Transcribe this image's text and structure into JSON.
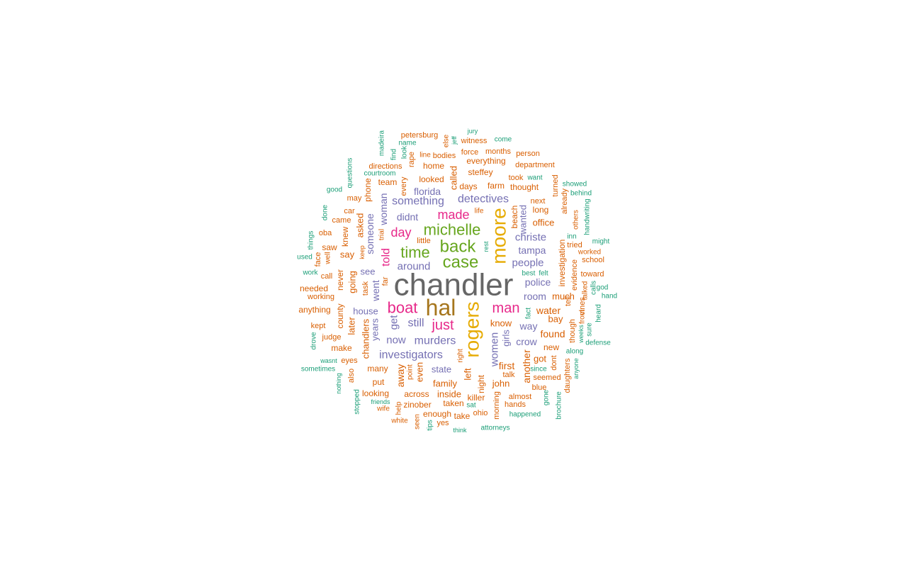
{
  "chart_data": {
    "type": "wordcloud",
    "palette": {
      "orange": "#d95f02",
      "teal": "#1b9e77",
      "purple": "#7570b3",
      "pink": "#e7298a",
      "green": "#66a61e",
      "gold": "#e6ab02",
      "brown": "#a6761d",
      "gray": "#666666"
    },
    "words": [
      {
        "text": "chandler",
        "color": "gray"
      },
      {
        "text": "hal",
        "color": "brown"
      },
      {
        "text": "rogers",
        "color": "gold"
      },
      {
        "text": "moore",
        "color": "gold"
      },
      {
        "text": "back",
        "color": "green"
      },
      {
        "text": "case",
        "color": "green"
      },
      {
        "text": "michelle",
        "color": "green"
      },
      {
        "text": "time",
        "color": "green"
      },
      {
        "text": "boat",
        "color": "pink"
      },
      {
        "text": "man",
        "color": "pink"
      },
      {
        "text": "just",
        "color": "pink"
      },
      {
        "text": "day",
        "color": "pink"
      },
      {
        "text": "made",
        "color": "pink"
      },
      {
        "text": "told",
        "color": "pink"
      },
      {
        "text": "murders",
        "color": "purple"
      },
      {
        "text": "investigators",
        "color": "purple"
      },
      {
        "text": "detectives",
        "color": "purple"
      },
      {
        "text": "something",
        "color": "purple"
      },
      {
        "text": "people",
        "color": "purple"
      },
      {
        "text": "christe",
        "color": "purple"
      },
      {
        "text": "tampa",
        "color": "purple"
      },
      {
        "text": "police",
        "color": "purple"
      },
      {
        "text": "women",
        "color": "purple"
      },
      {
        "text": "still",
        "color": "purple"
      },
      {
        "text": "now",
        "color": "purple"
      },
      {
        "text": "get",
        "color": "purple"
      },
      {
        "text": "around",
        "color": "purple"
      },
      {
        "text": "florida",
        "color": "purple"
      },
      {
        "text": "didnt",
        "color": "purple"
      },
      {
        "text": "someone",
        "color": "purple"
      },
      {
        "text": "woman",
        "color": "purple"
      },
      {
        "text": "went",
        "color": "purple"
      },
      {
        "text": "house",
        "color": "purple"
      },
      {
        "text": "years",
        "color": "purple"
      },
      {
        "text": "girls",
        "color": "purple"
      },
      {
        "text": "way",
        "color": "purple"
      },
      {
        "text": "room",
        "color": "purple"
      },
      {
        "text": "crow",
        "color": "purple"
      },
      {
        "text": "state",
        "color": "purple"
      },
      {
        "text": "see",
        "color": "purple"
      },
      {
        "text": "wanted",
        "color": "purple"
      },
      {
        "text": "office",
        "color": "orange"
      },
      {
        "text": "long",
        "color": "orange"
      },
      {
        "text": "next",
        "color": "orange"
      },
      {
        "text": "beach",
        "color": "orange"
      },
      {
        "text": "thought",
        "color": "orange"
      },
      {
        "text": "farm",
        "color": "orange"
      },
      {
        "text": "took",
        "color": "orange"
      },
      {
        "text": "days",
        "color": "orange"
      },
      {
        "text": "steffey",
        "color": "orange"
      },
      {
        "text": "everything",
        "color": "orange"
      },
      {
        "text": "department",
        "color": "orange"
      },
      {
        "text": "force",
        "color": "orange"
      },
      {
        "text": "months",
        "color": "orange"
      },
      {
        "text": "person",
        "color": "orange"
      },
      {
        "text": "witness",
        "color": "orange"
      },
      {
        "text": "petersburg",
        "color": "orange"
      },
      {
        "text": "else",
        "color": "orange"
      },
      {
        "text": "bodies",
        "color": "orange"
      },
      {
        "text": "line",
        "color": "orange"
      },
      {
        "text": "home",
        "color": "orange"
      },
      {
        "text": "called",
        "color": "orange"
      },
      {
        "text": "looked",
        "color": "orange"
      },
      {
        "text": "rape",
        "color": "orange"
      },
      {
        "text": "directions",
        "color": "orange"
      },
      {
        "text": "team",
        "color": "orange"
      },
      {
        "text": "every",
        "color": "orange"
      },
      {
        "text": "phone",
        "color": "orange"
      },
      {
        "text": "may",
        "color": "orange"
      },
      {
        "text": "car",
        "color": "orange"
      },
      {
        "text": "came",
        "color": "orange"
      },
      {
        "text": "asked",
        "color": "orange"
      },
      {
        "text": "knew",
        "color": "orange"
      },
      {
        "text": "oba",
        "color": "orange"
      },
      {
        "text": "saw",
        "color": "orange"
      },
      {
        "text": "say",
        "color": "orange"
      },
      {
        "text": "face",
        "color": "orange"
      },
      {
        "text": "well",
        "color": "orange"
      },
      {
        "text": "call",
        "color": "orange"
      },
      {
        "text": "never",
        "color": "orange"
      },
      {
        "text": "going",
        "color": "orange"
      },
      {
        "text": "needed",
        "color": "orange"
      },
      {
        "text": "working",
        "color": "orange"
      },
      {
        "text": "anything",
        "color": "orange"
      },
      {
        "text": "county",
        "color": "orange"
      },
      {
        "text": "later",
        "color": "orange"
      },
      {
        "text": "kept",
        "color": "orange"
      },
      {
        "text": "judge",
        "color": "orange"
      },
      {
        "text": "make",
        "color": "orange"
      },
      {
        "text": "chandlers",
        "color": "orange"
      },
      {
        "text": "eyes",
        "color": "orange"
      },
      {
        "text": "also",
        "color": "orange"
      },
      {
        "text": "many",
        "color": "orange"
      },
      {
        "text": "put",
        "color": "orange"
      },
      {
        "text": "looking",
        "color": "orange"
      },
      {
        "text": "across",
        "color": "orange"
      },
      {
        "text": "inside",
        "color": "orange"
      },
      {
        "text": "family",
        "color": "orange"
      },
      {
        "text": "away",
        "color": "orange"
      },
      {
        "text": "even",
        "color": "orange"
      },
      {
        "text": "point",
        "color": "orange"
      },
      {
        "text": "zinober",
        "color": "orange"
      },
      {
        "text": "taken",
        "color": "orange"
      },
      {
        "text": "enough",
        "color": "orange"
      },
      {
        "text": "take",
        "color": "orange"
      },
      {
        "text": "ohio",
        "color": "orange"
      },
      {
        "text": "seen",
        "color": "orange"
      },
      {
        "text": "white",
        "color": "orange"
      },
      {
        "text": "wife",
        "color": "orange"
      },
      {
        "text": "help",
        "color": "orange"
      },
      {
        "text": "yes",
        "color": "orange"
      },
      {
        "text": "killer",
        "color": "orange"
      },
      {
        "text": "left",
        "color": "orange"
      },
      {
        "text": "night",
        "color": "orange"
      },
      {
        "text": "right",
        "color": "orange"
      },
      {
        "text": "john",
        "color": "orange"
      },
      {
        "text": "first",
        "color": "orange"
      },
      {
        "text": "know",
        "color": "orange"
      },
      {
        "text": "talk",
        "color": "orange"
      },
      {
        "text": "morning",
        "color": "orange"
      },
      {
        "text": "almost",
        "color": "orange"
      },
      {
        "text": "hands",
        "color": "orange"
      },
      {
        "text": "another",
        "color": "orange"
      },
      {
        "text": "got",
        "color": "orange"
      },
      {
        "text": "seemed",
        "color": "orange"
      },
      {
        "text": "new",
        "color": "orange"
      },
      {
        "text": "found",
        "color": "orange"
      },
      {
        "text": "bay",
        "color": "orange"
      },
      {
        "text": "water",
        "color": "orange"
      },
      {
        "text": "much",
        "color": "orange"
      },
      {
        "text": "tell",
        "color": "orange"
      },
      {
        "text": "though",
        "color": "orange"
      },
      {
        "text": "investigation",
        "color": "orange"
      },
      {
        "text": "turned",
        "color": "orange"
      },
      {
        "text": "already",
        "color": "orange"
      },
      {
        "text": "others",
        "color": "orange"
      },
      {
        "text": "tried",
        "color": "orange"
      },
      {
        "text": "evidence",
        "color": "orange"
      },
      {
        "text": "talked",
        "color": "orange"
      },
      {
        "text": "vines",
        "color": "orange"
      },
      {
        "text": "front",
        "color": "orange"
      },
      {
        "text": "worked",
        "color": "orange"
      },
      {
        "text": "school",
        "color": "orange"
      },
      {
        "text": "toward",
        "color": "orange"
      },
      {
        "text": "daughters",
        "color": "orange"
      },
      {
        "text": "dont",
        "color": "orange"
      },
      {
        "text": "blue",
        "color": "orange"
      },
      {
        "text": "since",
        "color": "teal"
      },
      {
        "text": "little",
        "color": "orange"
      },
      {
        "text": "trial",
        "color": "orange"
      },
      {
        "text": "far",
        "color": "orange"
      },
      {
        "text": "task",
        "color": "orange"
      },
      {
        "text": "keep",
        "color": "orange"
      },
      {
        "text": "jury",
        "color": "teal"
      },
      {
        "text": "come",
        "color": "teal"
      },
      {
        "text": "name",
        "color": "teal"
      },
      {
        "text": "jeff",
        "color": "teal"
      },
      {
        "text": "find",
        "color": "teal"
      },
      {
        "text": "look",
        "color": "teal"
      },
      {
        "text": "madeira",
        "color": "teal"
      },
      {
        "text": "courtroom",
        "color": "teal"
      },
      {
        "text": "questions",
        "color": "teal"
      },
      {
        "text": "good",
        "color": "teal"
      },
      {
        "text": "done",
        "color": "teal"
      },
      {
        "text": "things",
        "color": "teal"
      },
      {
        "text": "used",
        "color": "teal"
      },
      {
        "text": "work",
        "color": "teal"
      },
      {
        "text": "drove",
        "color": "teal"
      },
      {
        "text": "wasnt",
        "color": "teal"
      },
      {
        "text": "sometimes",
        "color": "teal"
      },
      {
        "text": "nothing",
        "color": "teal"
      },
      {
        "text": "stopped",
        "color": "teal"
      },
      {
        "text": "friends",
        "color": "teal"
      },
      {
        "text": "tips",
        "color": "teal"
      },
      {
        "text": "think",
        "color": "teal"
      },
      {
        "text": "sat",
        "color": "teal"
      },
      {
        "text": "attorneys",
        "color": "teal"
      },
      {
        "text": "happened",
        "color": "teal"
      },
      {
        "text": "gone",
        "color": "teal"
      },
      {
        "text": "brochure",
        "color": "teal"
      },
      {
        "text": "anyone",
        "color": "teal"
      },
      {
        "text": "along",
        "color": "teal"
      },
      {
        "text": "defense",
        "color": "teal"
      },
      {
        "text": "weeks",
        "color": "teal"
      },
      {
        "text": "sure",
        "color": "teal"
      },
      {
        "text": "heard",
        "color": "teal"
      },
      {
        "text": "hand",
        "color": "teal"
      },
      {
        "text": "god",
        "color": "teal"
      },
      {
        "text": "calls",
        "color": "teal"
      },
      {
        "text": "best",
        "color": "teal"
      },
      {
        "text": "felt",
        "color": "teal"
      },
      {
        "text": "might",
        "color": "teal"
      },
      {
        "text": "inn",
        "color": "teal"
      },
      {
        "text": "handwriting",
        "color": "teal"
      },
      {
        "text": "behind",
        "color": "teal"
      },
      {
        "text": "showed",
        "color": "teal"
      },
      {
        "text": "want",
        "color": "teal"
      },
      {
        "text": "fact",
        "color": "teal"
      },
      {
        "text": "rest",
        "color": "teal"
      },
      {
        "text": "life",
        "color": "orange"
      }
    ]
  }
}
